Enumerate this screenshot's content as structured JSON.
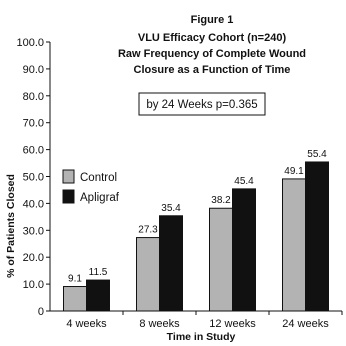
{
  "chart_data": {
    "type": "bar",
    "figure_label": "Figure 1",
    "title_lines": [
      "VLU Efficacy Cohort (n=240)",
      "Raw Frequency of Complete Wound",
      "Closure as a Function of Time"
    ],
    "annotation": "by 24 Weeks p=0.365",
    "xlabel": "Time in Study",
    "ylabel": "% of Patients Closed",
    "ylim": [
      0,
      100
    ],
    "yticks": [
      "0",
      "10.0",
      "20.0",
      "30.0",
      "40.0",
      "50.0",
      "60.0",
      "70.0",
      "80.0",
      "90.0",
      "100.0"
    ],
    "categories": [
      "4 weeks",
      "8 weeks",
      "12 weeks",
      "24 weeks"
    ],
    "series": [
      {
        "name": "Control",
        "values": [
          9.1,
          27.3,
          38.2,
          49.1
        ],
        "labels": [
          "9.1",
          "27.3",
          "38.2",
          "49.1"
        ],
        "color": "#b3b3b3"
      },
      {
        "name": "Apligraf",
        "values": [
          11.5,
          35.4,
          45.4,
          55.4
        ],
        "labels": [
          "11.5",
          "35.4",
          "45.4",
          "55.4"
        ],
        "color": "#111111"
      }
    ],
    "grid": false,
    "legend_position": "left"
  }
}
